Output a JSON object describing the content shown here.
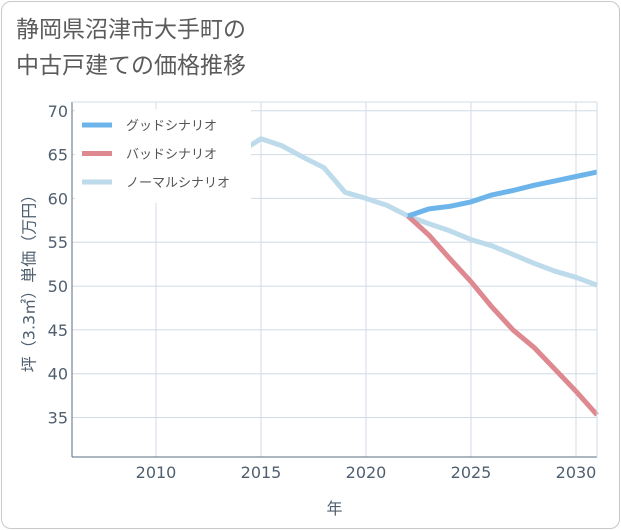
{
  "title_lines": [
    "静岡県沼津市大手町の",
    "中古戸建ての価格推移"
  ],
  "colors": {
    "good": "#6cb4ea",
    "bad": "#de8890",
    "normal": "#bddbea",
    "grid": "#cfdbe6",
    "axis": "#5a6e80",
    "plot_bg": "#ffffff"
  },
  "chart_data": {
    "type": "line",
    "xlabel": "年",
    "ylabel": "坪（3.3㎡）単価（万円）",
    "xlim": [
      2006,
      2031
    ],
    "ylim": [
      30.5,
      71
    ],
    "xticks": [
      2010,
      2015,
      2020,
      2025,
      2030
    ],
    "yticks": [
      35,
      40,
      45,
      50,
      55,
      60,
      65,
      70
    ],
    "grid": true,
    "legend_position": "top-left",
    "series": [
      {
        "name": "グッドシナリオ",
        "color_key": "good",
        "x": [
          2022,
          2023,
          2024,
          2025,
          2026,
          2027,
          2028,
          2029,
          2030,
          2031
        ],
        "y": [
          58.0,
          58.8,
          59.1,
          59.6,
          60.4,
          60.9,
          61.5,
          62.0,
          62.5,
          63.0
        ]
      },
      {
        "name": "バッドシナリオ",
        "color_key": "bad",
        "x": [
          2022,
          2023,
          2024,
          2025,
          2026,
          2027,
          2028,
          2029,
          2030,
          2031
        ],
        "y": [
          58.0,
          55.8,
          53.1,
          50.5,
          47.6,
          45.0,
          43.0,
          40.5,
          38.0,
          35.3
        ]
      },
      {
        "name": "ノーマルシナリオ",
        "color_key": "normal",
        "x": [
          2008,
          2009,
          2010,
          2011,
          2012,
          2013,
          2014,
          2015,
          2016,
          2017,
          2018,
          2019,
          2020,
          2021,
          2022,
          2023,
          2024,
          2025,
          2026,
          2027,
          2028,
          2029,
          2030,
          2031
        ],
        "y": [
          66.5,
          67.8,
          68.3,
          68.8,
          68.6,
          67.0,
          65.3,
          66.8,
          66.0,
          64.7,
          63.5,
          60.7,
          60.0,
          59.2,
          58.0,
          57.1,
          56.3,
          55.3,
          54.6,
          53.6,
          52.6,
          51.7,
          51.0,
          50.1
        ]
      }
    ]
  }
}
